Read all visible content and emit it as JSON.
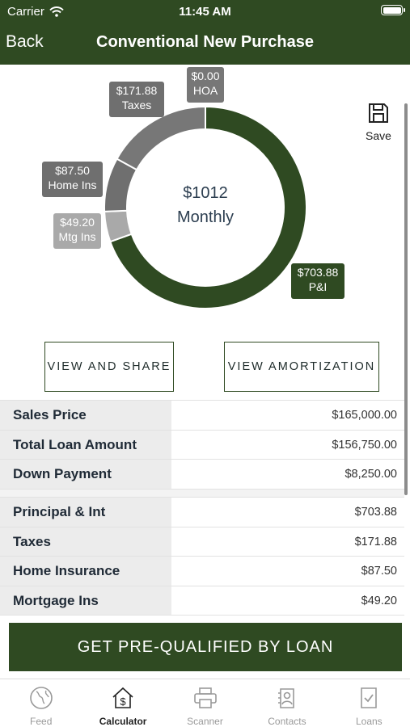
{
  "status": {
    "carrier": "Carrier",
    "time": "11:45 AM"
  },
  "nav": {
    "back": "Back",
    "title": "Conventional New Purchase"
  },
  "chart_data": {
    "type": "pie",
    "center_amount": "$1012",
    "center_label": "Monthly",
    "slices": [
      {
        "label": "P&I",
        "value": 703.88,
        "display": "$703.88",
        "color": "#2f4a22"
      },
      {
        "label": "Mtg Ins",
        "value": 49.2,
        "display": "$49.20",
        "color": "#a9a9a9"
      },
      {
        "label": "Home Ins",
        "value": 87.5,
        "display": "$87.50",
        "color": "#6f6f6f"
      },
      {
        "label": "Taxes",
        "value": 171.88,
        "display": "$171.88",
        "color": "#777777"
      },
      {
        "label": "HOA",
        "value": 0.0,
        "display": "$0.00",
        "color": "#777777"
      }
    ]
  },
  "save": {
    "label": "Save"
  },
  "buttons": {
    "share": "VIEW AND SHARE",
    "amortization": "VIEW AMORTIZATION"
  },
  "loan_rows": [
    {
      "label": "Sales Price",
      "value": "$165,000.00"
    },
    {
      "label": "Total Loan Amount",
      "value": "$156,750.00"
    },
    {
      "label": "Down Payment",
      "value": "$8,250.00"
    }
  ],
  "payment_rows": [
    {
      "label": "Principal & Int",
      "value": "$703.88"
    },
    {
      "label": "Taxes",
      "value": "$171.88"
    },
    {
      "label": "Home Insurance",
      "value": "$87.50"
    },
    {
      "label": "Mortgage Ins",
      "value": "$49.20"
    }
  ],
  "cta": {
    "label": "GET PRE-QUALIFIED BY LOAN"
  },
  "tabs": [
    {
      "label": "Feed",
      "icon": "globe-icon"
    },
    {
      "label": "Calculator",
      "icon": "house-dollar-icon",
      "active": true
    },
    {
      "label": "Scanner",
      "icon": "printer-icon"
    },
    {
      "label": "Contacts",
      "icon": "contacts-icon"
    },
    {
      "label": "Loans",
      "icon": "document-check-icon"
    }
  ],
  "colors": {
    "brand": "#2f4a22",
    "row_label_bg": "#ececec"
  }
}
